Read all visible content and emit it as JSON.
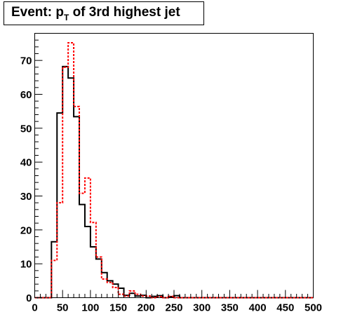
{
  "chart_data": {
    "type": "histogram",
    "title": {
      "prefix": "Event: p",
      "subscript": "T",
      "suffix": " of 3rd highest jet"
    },
    "xlabel": "",
    "ylabel": "",
    "xlim": [
      0,
      500
    ],
    "ylim": [
      0,
      78
    ],
    "grid": false,
    "legend": "none",
    "xticks": [
      0,
      50,
      100,
      150,
      200,
      250,
      300,
      350,
      400,
      450,
      500
    ],
    "yticks": [
      0,
      10,
      20,
      30,
      40,
      50,
      60,
      70
    ],
    "bin_edges_start": 0,
    "bin_width": 10,
    "series": [
      {
        "color": "#000000",
        "style": "solid",
        "values": [
          0,
          0,
          0,
          16.5,
          54.5,
          68.2,
          64.8,
          53.4,
          27.5,
          21.0,
          15.0,
          11.4,
          7.4,
          5.0,
          4.0,
          2.8,
          0.7,
          1.3,
          0.5,
          0.7,
          0,
          0.4,
          0.6,
          0,
          0.3,
          0.6,
          0,
          0,
          0,
          0,
          0,
          0,
          0,
          0,
          0,
          0,
          0,
          0,
          0,
          0,
          0,
          0,
          0,
          0,
          0,
          0,
          0,
          0,
          0,
          0
        ]
      },
      {
        "color": "#ff0000",
        "style": "dashed",
        "values": [
          0,
          0,
          0,
          11.0,
          28.0,
          68.0,
          75.2,
          56.4,
          30.8,
          35.3,
          22.2,
          12.0,
          5.5,
          4.5,
          3.0,
          1.0,
          0.5,
          2.0,
          1.0,
          0.5,
          0.5,
          0,
          0.3,
          0,
          0.4,
          0,
          0,
          0,
          0,
          0,
          0,
          0,
          0,
          0,
          0,
          0,
          0,
          0,
          0,
          0,
          0,
          0,
          0,
          0,
          0,
          0,
          0,
          0,
          0,
          0
        ]
      }
    ]
  }
}
